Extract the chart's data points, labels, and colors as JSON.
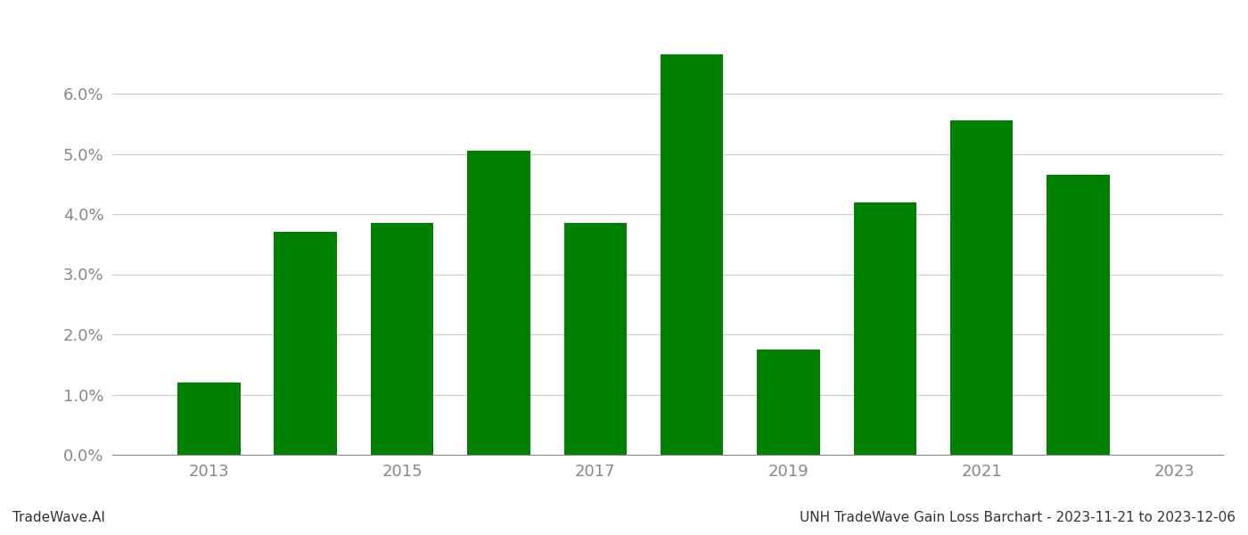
{
  "years": [
    2013,
    2014,
    2015,
    2016,
    2017,
    2018,
    2019,
    2020,
    2021,
    2022
  ],
  "values": [
    0.012,
    0.037,
    0.0385,
    0.0505,
    0.0385,
    0.0665,
    0.0175,
    0.042,
    0.0555,
    0.0465
  ],
  "bar_color": "#008000",
  "background_color": "#ffffff",
  "grid_color": "#cccccc",
  "footer_left": "TradeWave.AI",
  "footer_right": "UNH TradeWave Gain Loss Barchart - 2023-11-21 to 2023-12-06",
  "ylim": [
    0,
    0.072
  ],
  "ytick_values": [
    0.0,
    0.01,
    0.02,
    0.03,
    0.04,
    0.05,
    0.06
  ],
  "xtick_values": [
    2013,
    2015,
    2017,
    2019,
    2021,
    2023
  ],
  "xlim": [
    2012.0,
    2023.5
  ],
  "bar_width": 0.65,
  "footer_fontsize": 11,
  "tick_fontsize": 13,
  "tick_color": "#888888",
  "spine_color": "#888888"
}
